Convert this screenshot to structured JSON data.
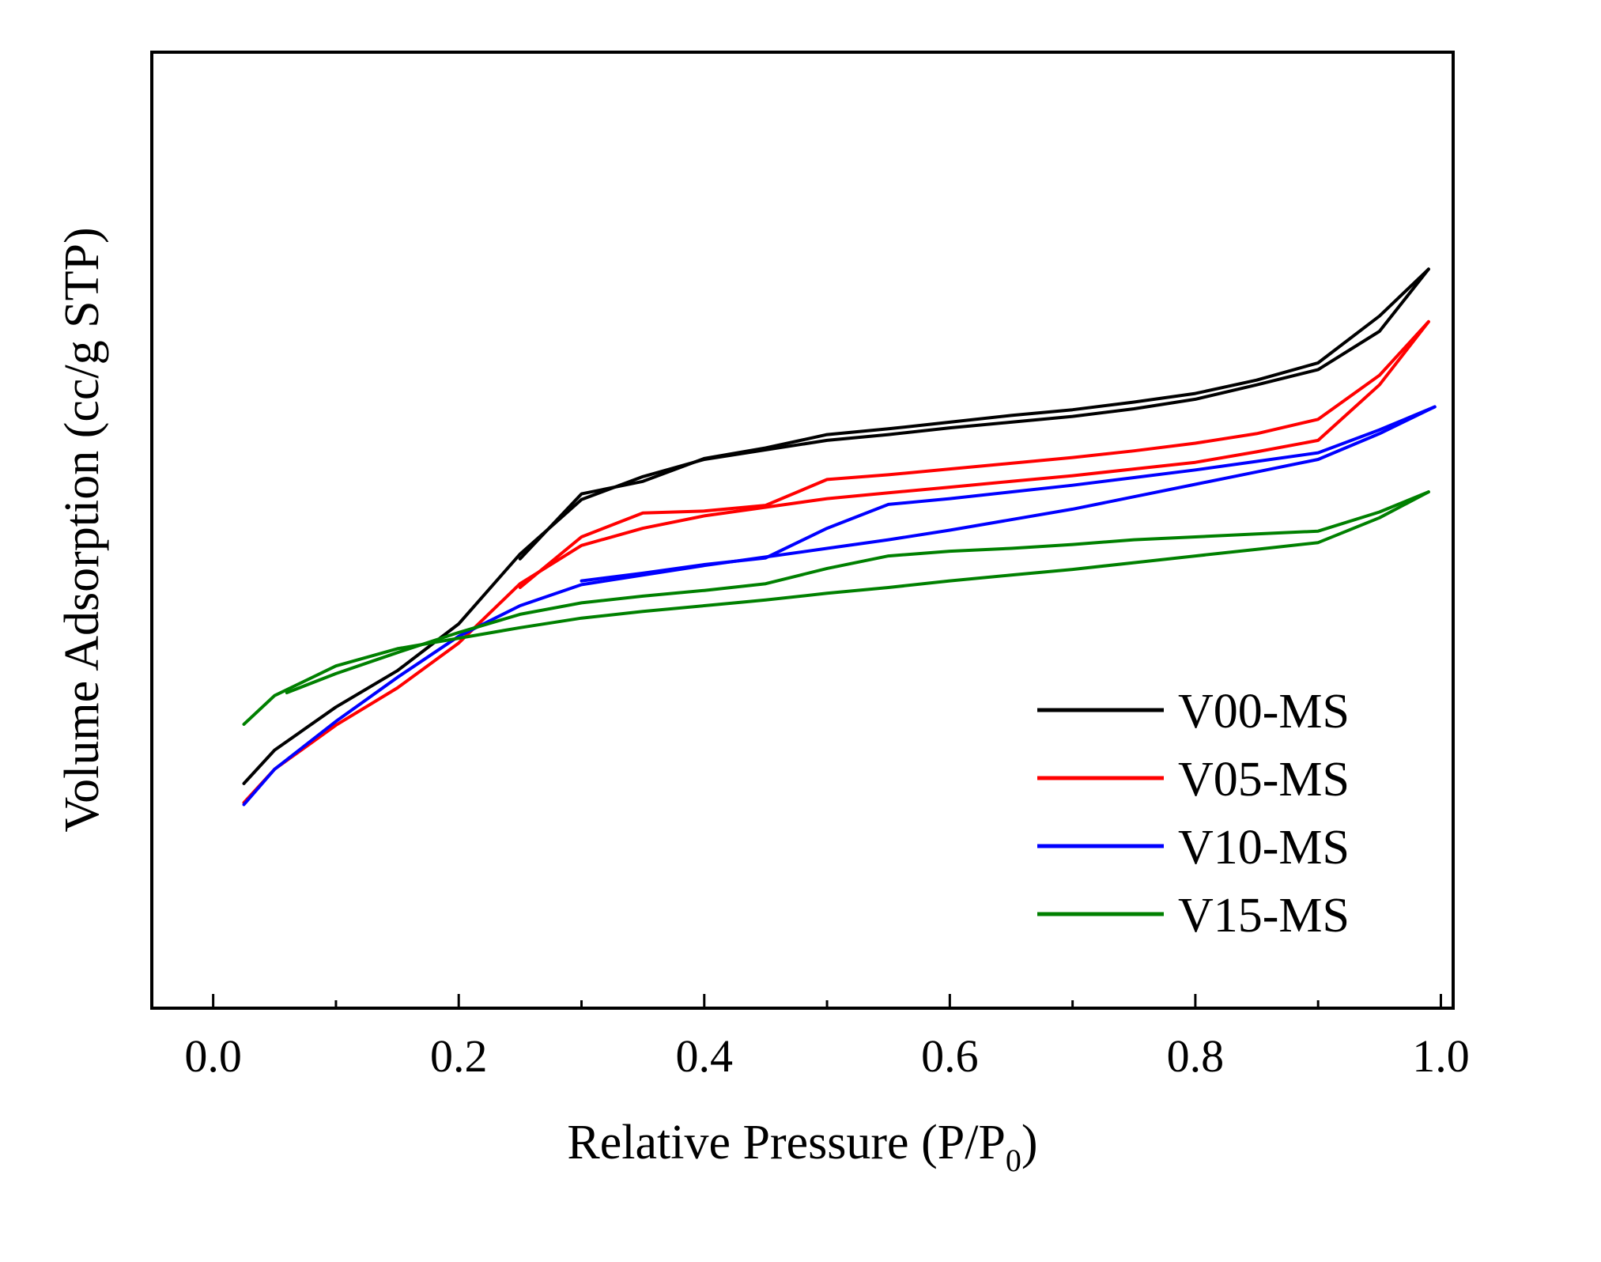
{
  "chart_data": {
    "type": "line",
    "title": "",
    "xlabel": "Relative Pressure  (P/P",
    "xlabel_sub": "0",
    "xlabel_close": ")",
    "ylabel": "Volume Adsorption  (cc/g STP)",
    "xlim": [
      -0.05,
      1.01
    ],
    "ylim": [
      0,
      100
    ],
    "y_tick_labels_shown": false,
    "grid": false,
    "legend_position": "lower-right",
    "x_ticks": [
      {
        "value": 0.0,
        "label": "0.0"
      },
      {
        "value": 0.2,
        "label": "0.2"
      },
      {
        "value": 0.4,
        "label": "0.4"
      },
      {
        "value": 0.6,
        "label": "0.6"
      },
      {
        "value": 0.8,
        "label": "0.8"
      },
      {
        "value": 1.0,
        "label": "1.0"
      }
    ],
    "x_minor_ticks": [
      0.1,
      0.3,
      0.5,
      0.7,
      0.9
    ],
    "series": [
      {
        "name": "V00-MS",
        "color": "#000000",
        "adsorption": [
          [
            0.025,
            23.5
          ],
          [
            0.05,
            27
          ],
          [
            0.1,
            31.5
          ],
          [
            0.15,
            35.3
          ],
          [
            0.2,
            40.2
          ],
          [
            0.25,
            47.5
          ],
          [
            0.3,
            53.2
          ],
          [
            0.35,
            55.6
          ],
          [
            0.4,
            57.4
          ],
          [
            0.45,
            58.4
          ],
          [
            0.5,
            59.4
          ],
          [
            0.55,
            60
          ],
          [
            0.6,
            60.7
          ],
          [
            0.65,
            61.3
          ],
          [
            0.7,
            61.9
          ],
          [
            0.75,
            62.7
          ],
          [
            0.8,
            63.7
          ],
          [
            0.85,
            65.2
          ],
          [
            0.9,
            66.8
          ],
          [
            0.95,
            70.8
          ],
          [
            0.99,
            77.3
          ]
        ],
        "desorption": [
          [
            0.99,
            77.3
          ],
          [
            0.95,
            72.4
          ],
          [
            0.9,
            67.5
          ],
          [
            0.85,
            65.7
          ],
          [
            0.8,
            64.3
          ],
          [
            0.75,
            63.4
          ],
          [
            0.7,
            62.6
          ],
          [
            0.65,
            62
          ],
          [
            0.6,
            61.3
          ],
          [
            0.55,
            60.6
          ],
          [
            0.5,
            60
          ],
          [
            0.45,
            58.6
          ],
          [
            0.4,
            57.5
          ],
          [
            0.35,
            55.1
          ],
          [
            0.3,
            53.8
          ],
          [
            0.25,
            47
          ]
        ]
      },
      {
        "name": "V05-MS",
        "color": "#ff0000",
        "adsorption": [
          [
            0.025,
            21.5
          ],
          [
            0.05,
            25
          ],
          [
            0.1,
            29.6
          ],
          [
            0.15,
            33.5
          ],
          [
            0.2,
            38.2
          ],
          [
            0.25,
            44.4
          ],
          [
            0.3,
            48.4
          ],
          [
            0.35,
            50.2
          ],
          [
            0.4,
            51.5
          ],
          [
            0.45,
            52.4
          ],
          [
            0.5,
            53.3
          ],
          [
            0.55,
            53.9
          ],
          [
            0.6,
            54.5
          ],
          [
            0.65,
            55.1
          ],
          [
            0.7,
            55.7
          ],
          [
            0.75,
            56.4
          ],
          [
            0.8,
            57.1
          ],
          [
            0.85,
            58.2
          ],
          [
            0.9,
            59.4
          ],
          [
            0.95,
            65.2
          ],
          [
            0.99,
            71.8
          ]
        ],
        "desorption": [
          [
            0.99,
            71.8
          ],
          [
            0.95,
            66.2
          ],
          [
            0.9,
            61.6
          ],
          [
            0.85,
            60.1
          ],
          [
            0.8,
            59.1
          ],
          [
            0.75,
            58.3
          ],
          [
            0.7,
            57.6
          ],
          [
            0.65,
            57
          ],
          [
            0.6,
            56.4
          ],
          [
            0.55,
            55.8
          ],
          [
            0.5,
            55.3
          ],
          [
            0.45,
            52.6
          ],
          [
            0.4,
            52
          ],
          [
            0.35,
            51.8
          ],
          [
            0.3,
            49.3
          ],
          [
            0.25,
            44
          ]
        ]
      },
      {
        "name": "V10-MS",
        "color": "#0000ff",
        "adsorption": [
          [
            0.025,
            21.3
          ],
          [
            0.05,
            25
          ],
          [
            0.1,
            30
          ],
          [
            0.15,
            34.6
          ],
          [
            0.2,
            38.9
          ],
          [
            0.25,
            42.1
          ],
          [
            0.3,
            44.3
          ],
          [
            0.35,
            45.3
          ],
          [
            0.4,
            46.3
          ],
          [
            0.45,
            47.2
          ],
          [
            0.5,
            48.1
          ],
          [
            0.55,
            49
          ],
          [
            0.6,
            50
          ],
          [
            0.65,
            51.1
          ],
          [
            0.7,
            52.2
          ],
          [
            0.75,
            53.5
          ],
          [
            0.8,
            54.8
          ],
          [
            0.85,
            56.1
          ],
          [
            0.9,
            57.4
          ],
          [
            0.95,
            60.1
          ],
          [
            0.995,
            62.9
          ]
        ],
        "desorption": [
          [
            0.995,
            62.9
          ],
          [
            0.95,
            60.5
          ],
          [
            0.9,
            58.1
          ],
          [
            0.85,
            57.2
          ],
          [
            0.8,
            56.3
          ],
          [
            0.75,
            55.5
          ],
          [
            0.7,
            54.7
          ],
          [
            0.65,
            54
          ],
          [
            0.6,
            53.3
          ],
          [
            0.55,
            52.7
          ],
          [
            0.5,
            50.2
          ],
          [
            0.45,
            47.1
          ],
          [
            0.4,
            46.4
          ],
          [
            0.35,
            45.5
          ],
          [
            0.3,
            44.7
          ]
        ]
      },
      {
        "name": "V15-MS",
        "color": "#008000",
        "adsorption": [
          [
            0.025,
            29.7
          ],
          [
            0.05,
            32.7
          ],
          [
            0.1,
            35.8
          ],
          [
            0.15,
            37.6
          ],
          [
            0.2,
            38.7
          ],
          [
            0.25,
            39.8
          ],
          [
            0.3,
            40.8
          ],
          [
            0.35,
            41.5
          ],
          [
            0.4,
            42.1
          ],
          [
            0.45,
            42.7
          ],
          [
            0.5,
            43.4
          ],
          [
            0.55,
            44
          ],
          [
            0.6,
            44.7
          ],
          [
            0.65,
            45.3
          ],
          [
            0.7,
            45.9
          ],
          [
            0.75,
            46.6
          ],
          [
            0.8,
            47.3
          ],
          [
            0.85,
            48
          ],
          [
            0.9,
            48.7
          ],
          [
            0.95,
            51.3
          ],
          [
            0.99,
            54
          ]
        ],
        "desorption": [
          [
            0.99,
            54
          ],
          [
            0.95,
            51.9
          ],
          [
            0.9,
            49.9
          ],
          [
            0.85,
            49.6
          ],
          [
            0.8,
            49.3
          ],
          [
            0.75,
            49
          ],
          [
            0.7,
            48.5
          ],
          [
            0.65,
            48.1
          ],
          [
            0.6,
            47.8
          ],
          [
            0.55,
            47.3
          ],
          [
            0.5,
            46
          ],
          [
            0.45,
            44.4
          ],
          [
            0.4,
            43.7
          ],
          [
            0.35,
            43.1
          ],
          [
            0.3,
            42.4
          ],
          [
            0.25,
            41.2
          ],
          [
            0.2,
            39.3
          ],
          [
            0.15,
            37.2
          ],
          [
            0.1,
            35
          ],
          [
            0.06,
            33
          ]
        ]
      }
    ]
  }
}
